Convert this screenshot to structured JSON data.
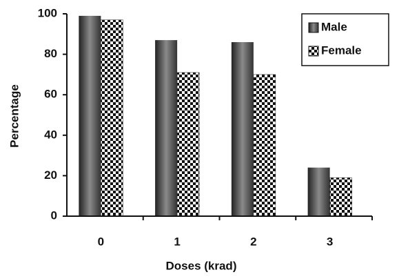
{
  "chart_data": {
    "type": "bar",
    "categories": [
      "0",
      "1",
      "2",
      "3"
    ],
    "series": [
      {
        "name": "Male",
        "color": "#4a4a4a",
        "values": [
          99,
          87,
          86,
          24
        ]
      },
      {
        "name": "Female",
        "color": "#111111",
        "values": [
          97,
          71,
          70,
          19
        ]
      }
    ],
    "xlabel": "Doses (krad)",
    "ylabel": "Percentage",
    "ylim": [
      0,
      100
    ],
    "yticks": [
      0,
      20,
      40,
      60,
      80,
      100
    ],
    "legend": "upper right"
  }
}
